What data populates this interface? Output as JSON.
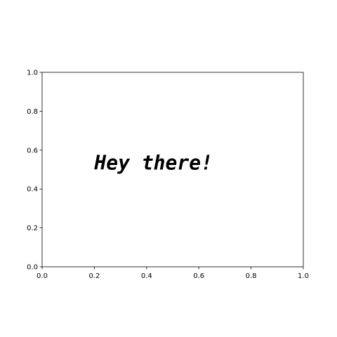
{
  "chart_data": {
    "type": "scatter",
    "title": "",
    "xlabel": "",
    "ylabel": "",
    "xlim": [
      0,
      1
    ],
    "ylim": [
      0,
      1
    ],
    "x_ticks": [
      "0.0",
      "0.2",
      "0.4",
      "0.6",
      "0.8",
      "1.0"
    ],
    "y_ticks": [
      "0.0",
      "0.2",
      "0.4",
      "0.6",
      "0.8",
      "1.0"
    ],
    "grid": false,
    "series": [],
    "annotations": [
      {
        "text": "Hey there!",
        "x": 0.2,
        "y": 0.5
      }
    ]
  }
}
